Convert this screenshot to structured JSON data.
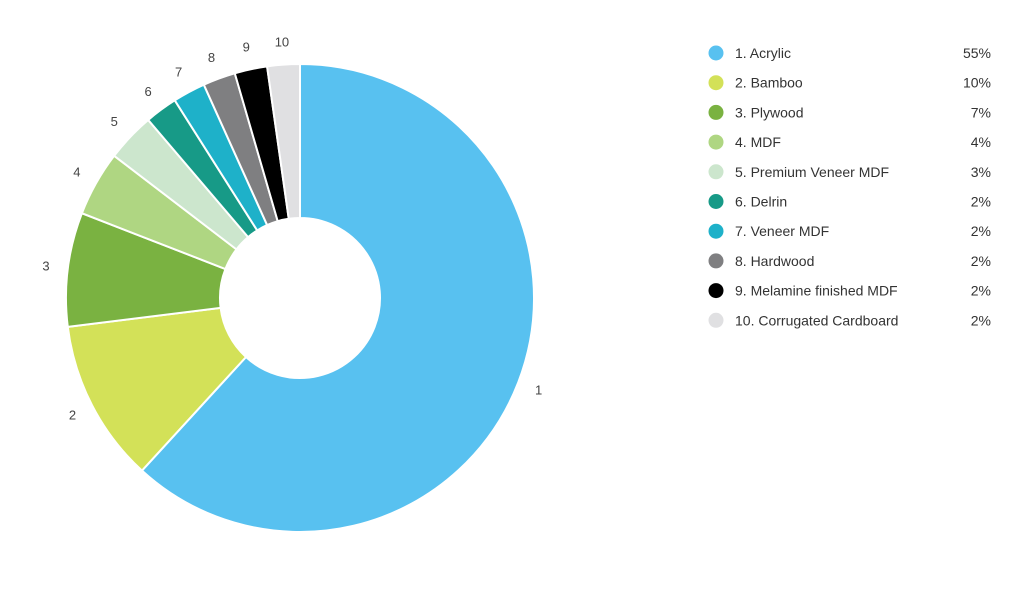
{
  "chart_data": {
    "type": "pie",
    "donut": true,
    "legend_position": "right",
    "categories": [
      "1. Acrylic",
      "2. Bamboo",
      "3. Plywood",
      "4. MDF",
      "5. Premium Veneer MDF",
      "6. Delrin",
      "7. Veneer MDF",
      "8. Hardwood",
      "9. Melamine finished MDF",
      "10. Corrugated Cardboard"
    ],
    "slice_labels": [
      "1",
      "2",
      "3",
      "4",
      "5",
      "6",
      "7",
      "8",
      "9",
      "10"
    ],
    "values": [
      55,
      10,
      7,
      4,
      3,
      2,
      2,
      2,
      2,
      2
    ],
    "value_labels": [
      "55%",
      "10%",
      "7%",
      "4%",
      "3%",
      "2%",
      "2%",
      "2%",
      "2%",
      "2%"
    ],
    "colors": [
      "#58c1f0",
      "#d3e158",
      "#7ab241",
      "#afd682",
      "#cce6cd",
      "#179a87",
      "#1eb1c9",
      "#7f7f81",
      "#000000",
      "#e0e0e2"
    ]
  }
}
